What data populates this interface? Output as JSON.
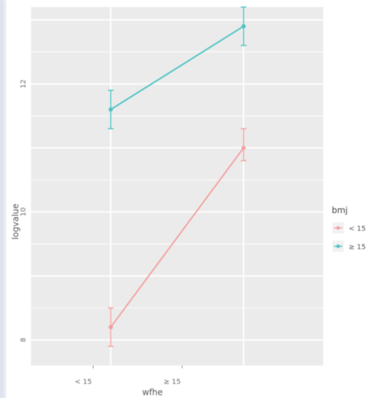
{
  "chart_data": {
    "type": "line",
    "title": "",
    "xlabel": "wfhe",
    "ylabel": "logvalue",
    "x_tick_labels": [
      "< 15",
      "≥ 15"
    ],
    "x_positions": [
      1,
      2
    ],
    "xlim": [
      0.4,
      2.6
    ],
    "y_tick_labels": [
      "8",
      "10",
      "12"
    ],
    "ylim": [
      7.6,
      13.2
    ],
    "grid": true,
    "legend_title": "bmj",
    "legend_position": "right",
    "series": [
      {
        "name": "< 15",
        "color": "#f4a0a0",
        "x": [
          1,
          2
        ],
        "y": [
          8.2,
          11.0
        ],
        "ymin": [
          7.9,
          10.8
        ],
        "ymax": [
          8.5,
          11.3
        ]
      },
      {
        "name": "≥ 15",
        "color": "#4ec2c4",
        "x": [
          1,
          2
        ],
        "y": [
          11.6,
          12.9
        ],
        "ymin": [
          11.3,
          12.6
        ],
        "ymax": [
          11.9,
          13.2
        ]
      }
    ]
  }
}
